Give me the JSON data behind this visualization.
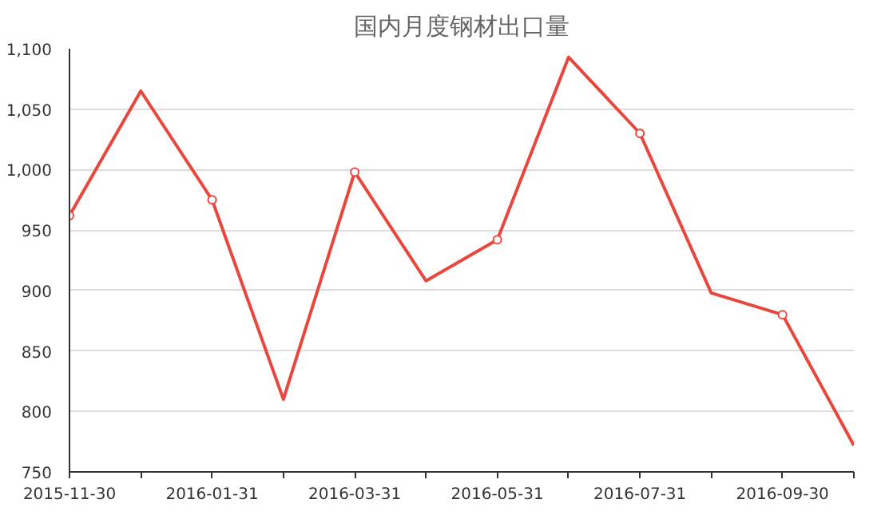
{
  "chart_data": {
    "type": "line",
    "title": "国内月度钢材出口量",
    "categories": [
      "2015-11-30",
      null,
      "2016-01-31",
      null,
      "2016-03-31",
      null,
      "2016-05-31",
      null,
      "2016-07-31",
      null,
      "2016-09-30",
      null
    ],
    "series": [
      {
        "color": "#e8473d",
        "values": [
          962,
          1065,
          975,
          810,
          998,
          908,
          942,
          1093,
          1030,
          898,
          880,
          772
        ]
      }
    ],
    "ylim": [
      750,
      1100
    ],
    "yticks": [
      750,
      800,
      850,
      900,
      950,
      {
        "value": 1000,
        "label": "1,000"
      },
      {
        "value": 1050,
        "label": "1,050"
      },
      {
        "value": 1100,
        "label": "1,100"
      }
    ],
    "grid": "y",
    "marker": "circle",
    "line_style": "solid"
  }
}
